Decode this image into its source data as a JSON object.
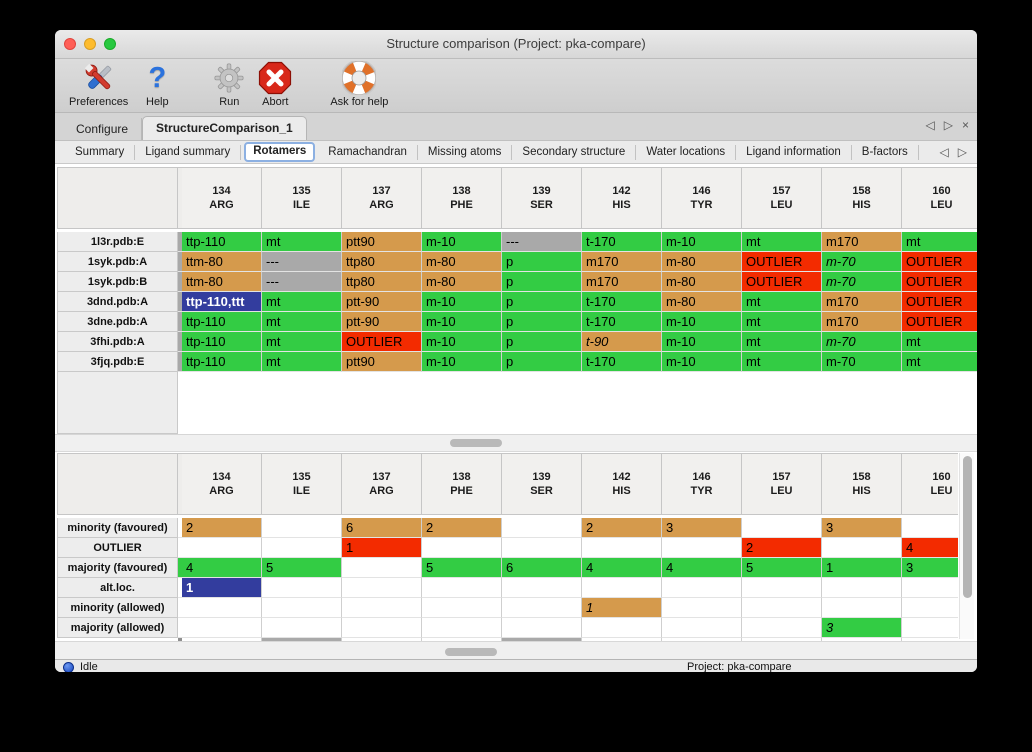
{
  "window": {
    "title": "Structure comparison (Project: pka-compare)"
  },
  "toolbar": {
    "buttons": [
      {
        "label": "Preferences",
        "icon": "tools-icon"
      },
      {
        "label": "Help",
        "icon": "question-mark-icon"
      },
      {
        "label": "Run",
        "icon": "gear-icon"
      },
      {
        "label": "Abort",
        "icon": "stop-icon"
      },
      {
        "label": "Ask for help",
        "icon": "lifebuoy-icon"
      }
    ]
  },
  "tabs": {
    "items": [
      {
        "label": "Configure",
        "selected": false
      },
      {
        "label": "StructureComparison_1",
        "selected": true
      }
    ],
    "nav": {
      "prev": "◁",
      "next": "▷",
      "close": "×"
    }
  },
  "subtabs": {
    "items": [
      "Summary",
      "Ligand summary",
      "Rotamers",
      "Ramachandran",
      "Missing atoms",
      "Secondary structure",
      "Water locations",
      "Ligand information",
      "B-factors"
    ],
    "selected_index": 2,
    "nav": {
      "prev": "◁",
      "next": "▷"
    }
  },
  "columns": [
    {
      "num": "134",
      "res": "ARG"
    },
    {
      "num": "135",
      "res": "ILE"
    },
    {
      "num": "137",
      "res": "ARG"
    },
    {
      "num": "138",
      "res": "PHE"
    },
    {
      "num": "139",
      "res": "SER"
    },
    {
      "num": "142",
      "res": "HIS"
    },
    {
      "num": "146",
      "res": "TYR"
    },
    {
      "num": "157",
      "res": "LEU"
    },
    {
      "num": "158",
      "res": "HIS"
    },
    {
      "num": "160",
      "res": "LEU"
    }
  ],
  "top_table": {
    "rows": [
      {
        "label": "1l3r.pdb:E",
        "cells": [
          {
            "t": "ttp-110",
            "c": "g"
          },
          {
            "t": "mt",
            "c": "g"
          },
          {
            "t": "ptt90",
            "c": "o"
          },
          {
            "t": "m-10",
            "c": "g"
          },
          {
            "t": "---",
            "c": "x"
          },
          {
            "t": "t-170",
            "c": "g"
          },
          {
            "t": "m-10",
            "c": "g"
          },
          {
            "t": "mt",
            "c": "g"
          },
          {
            "t": "m170",
            "c": "o"
          },
          {
            "t": "mt",
            "c": "g"
          }
        ]
      },
      {
        "label": "1syk.pdb:A",
        "cells": [
          {
            "t": "ttm-80",
            "c": "o"
          },
          {
            "t": "---",
            "c": "x"
          },
          {
            "t": "ttp80",
            "c": "o"
          },
          {
            "t": "m-80",
            "c": "o"
          },
          {
            "t": "p",
            "c": "g"
          },
          {
            "t": "m170",
            "c": "o"
          },
          {
            "t": "m-80",
            "c": "o"
          },
          {
            "t": "OUTLIER",
            "c": "r"
          },
          {
            "t": "m-70",
            "c": "g",
            "i": 1
          },
          {
            "t": "OUTLIER",
            "c": "r"
          }
        ]
      },
      {
        "label": "1syk.pdb:B",
        "cells": [
          {
            "t": "ttm-80",
            "c": "o"
          },
          {
            "t": "---",
            "c": "x"
          },
          {
            "t": "ttp80",
            "c": "o"
          },
          {
            "t": "m-80",
            "c": "o"
          },
          {
            "t": "p",
            "c": "g"
          },
          {
            "t": "m170",
            "c": "o"
          },
          {
            "t": "m-80",
            "c": "o"
          },
          {
            "t": "OUTLIER",
            "c": "r"
          },
          {
            "t": "m-70",
            "c": "g",
            "i": 1
          },
          {
            "t": "OUTLIER",
            "c": "r"
          }
        ]
      },
      {
        "label": "3dnd.pdb:A",
        "cells": [
          {
            "t": "ttp-110,ttt",
            "c": "b"
          },
          {
            "t": "mt",
            "c": "g"
          },
          {
            "t": "ptt-90",
            "c": "o"
          },
          {
            "t": "m-10",
            "c": "g"
          },
          {
            "t": "p",
            "c": "g"
          },
          {
            "t": "t-170",
            "c": "g"
          },
          {
            "t": "m-80",
            "c": "o"
          },
          {
            "t": "mt",
            "c": "g"
          },
          {
            "t": "m170",
            "c": "o"
          },
          {
            "t": "OUTLIER",
            "c": "r"
          }
        ]
      },
      {
        "label": "3dne.pdb:A",
        "cells": [
          {
            "t": "ttp-110",
            "c": "g"
          },
          {
            "t": "mt",
            "c": "g"
          },
          {
            "t": "ptt-90",
            "c": "o"
          },
          {
            "t": "m-10",
            "c": "g"
          },
          {
            "t": "p",
            "c": "g"
          },
          {
            "t": "t-170",
            "c": "g"
          },
          {
            "t": "m-10",
            "c": "g"
          },
          {
            "t": "mt",
            "c": "g"
          },
          {
            "t": "m170",
            "c": "o"
          },
          {
            "t": "OUTLIER",
            "c": "r"
          }
        ]
      },
      {
        "label": "3fhi.pdb:A",
        "cells": [
          {
            "t": "ttp-110",
            "c": "g"
          },
          {
            "t": "mt",
            "c": "g"
          },
          {
            "t": "OUTLIER",
            "c": "r"
          },
          {
            "t": "m-10",
            "c": "g"
          },
          {
            "t": "p",
            "c": "g"
          },
          {
            "t": "t-90",
            "c": "o",
            "i": 1
          },
          {
            "t": "m-10",
            "c": "g"
          },
          {
            "t": "mt",
            "c": "g"
          },
          {
            "t": "m-70",
            "c": "g",
            "i": 1
          },
          {
            "t": "mt",
            "c": "g"
          }
        ]
      },
      {
        "label": "3fjq.pdb:E",
        "cells": [
          {
            "t": "ttp-110",
            "c": "g"
          },
          {
            "t": "mt",
            "c": "g"
          },
          {
            "t": "ptt90",
            "c": "o"
          },
          {
            "t": "m-10",
            "c": "g"
          },
          {
            "t": "p",
            "c": "g"
          },
          {
            "t": "t-170",
            "c": "g"
          },
          {
            "t": "m-10",
            "c": "g"
          },
          {
            "t": "mt",
            "c": "g"
          },
          {
            "t": "m-70",
            "c": "g"
          },
          {
            "t": "mt",
            "c": "g"
          }
        ]
      }
    ]
  },
  "bottom_table": {
    "rows": [
      {
        "label": "minority (favoured)",
        "cells": [
          {
            "t": "2",
            "c": "o"
          },
          {
            "t": "",
            "c": "w"
          },
          {
            "t": "6",
            "c": "o"
          },
          {
            "t": "2",
            "c": "o"
          },
          {
            "t": "",
            "c": "w"
          },
          {
            "t": "2",
            "c": "o"
          },
          {
            "t": "3",
            "c": "o"
          },
          {
            "t": "",
            "c": "w"
          },
          {
            "t": "3",
            "c": "o"
          },
          {
            "t": "",
            "c": "w"
          }
        ]
      },
      {
        "label": "OUTLIER",
        "cells": [
          {
            "t": "",
            "c": "w"
          },
          {
            "t": "",
            "c": "w"
          },
          {
            "t": "1",
            "c": "r"
          },
          {
            "t": "",
            "c": "w"
          },
          {
            "t": "",
            "c": "w"
          },
          {
            "t": "",
            "c": "w"
          },
          {
            "t": "",
            "c": "w"
          },
          {
            "t": "2",
            "c": "r"
          },
          {
            "t": "",
            "c": "w"
          },
          {
            "t": "4",
            "c": "r"
          }
        ]
      },
      {
        "label": "majority (favoured)",
        "gutter": "g",
        "cells": [
          {
            "t": "4",
            "c": "g"
          },
          {
            "t": "5",
            "c": "g"
          },
          {
            "t": "",
            "c": "w"
          },
          {
            "t": "5",
            "c": "g"
          },
          {
            "t": "6",
            "c": "g"
          },
          {
            "t": "4",
            "c": "g"
          },
          {
            "t": "4",
            "c": "g"
          },
          {
            "t": "5",
            "c": "g"
          },
          {
            "t": "1",
            "c": "g"
          },
          {
            "t": "3",
            "c": "g"
          }
        ]
      },
      {
        "label": "alt.loc.",
        "cells": [
          {
            "t": "1",
            "c": "b"
          },
          {
            "t": "",
            "c": "w"
          },
          {
            "t": "",
            "c": "w"
          },
          {
            "t": "",
            "c": "w"
          },
          {
            "t": "",
            "c": "w"
          },
          {
            "t": "",
            "c": "w"
          },
          {
            "t": "",
            "c": "w"
          },
          {
            "t": "",
            "c": "w"
          },
          {
            "t": "",
            "c": "w"
          },
          {
            "t": "",
            "c": "w"
          }
        ]
      },
      {
        "label": "minority (allowed)",
        "cells": [
          {
            "t": "",
            "c": "w"
          },
          {
            "t": "",
            "c": "w"
          },
          {
            "t": "",
            "c": "w"
          },
          {
            "t": "",
            "c": "w"
          },
          {
            "t": "",
            "c": "w"
          },
          {
            "t": "1",
            "c": "o",
            "i": 1
          },
          {
            "t": "",
            "c": "w"
          },
          {
            "t": "",
            "c": "w"
          },
          {
            "t": "",
            "c": "w"
          },
          {
            "t": "",
            "c": "w"
          }
        ]
      },
      {
        "label": "majority (allowed)",
        "cells": [
          {
            "t": "",
            "c": "w"
          },
          {
            "t": "",
            "c": "w"
          },
          {
            "t": "",
            "c": "w"
          },
          {
            "t": "",
            "c": "w"
          },
          {
            "t": "",
            "c": "w"
          },
          {
            "t": "",
            "c": "w"
          },
          {
            "t": "",
            "c": "w"
          },
          {
            "t": "",
            "c": "w"
          },
          {
            "t": "3",
            "c": "g",
            "i": 1
          },
          {
            "t": "",
            "c": "w"
          }
        ]
      }
    ],
    "partial_row": {
      "gutter": "pg",
      "cells": [
        "w",
        "x",
        "w",
        "w",
        "x",
        "w",
        "w",
        "w",
        "w",
        "w"
      ]
    }
  },
  "statusbar": {
    "left": "Idle",
    "right": "Project: pka-compare"
  },
  "colors": {
    "g": "#33cc44",
    "o": "#d59a4c",
    "r": "#f32b00",
    "x": "#a9a9a9",
    "b": "#333d9e",
    "w": "#ffffff",
    "pg": "#8f8f8f"
  }
}
